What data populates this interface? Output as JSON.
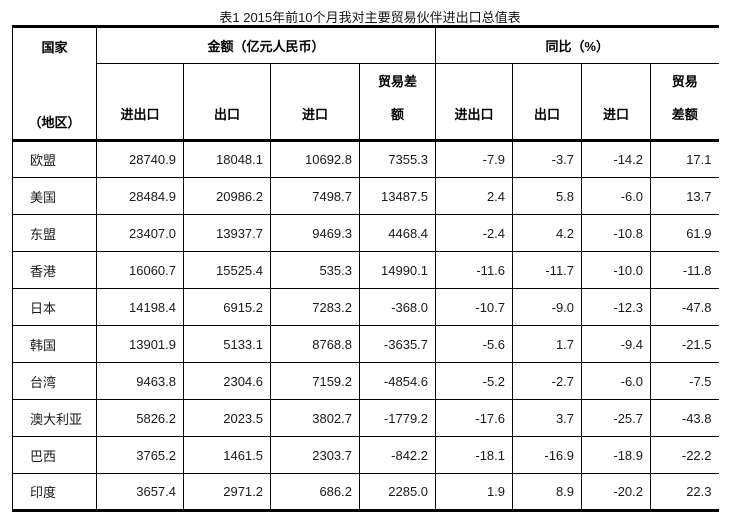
{
  "title": "表1 2015年前10个月我对主要贸易伙伴进出口总值表",
  "colors": {
    "border": "#000000",
    "text": "#1a1a1a",
    "background": "#ffffff"
  },
  "table": {
    "header": {
      "country_line1": "国家",
      "country_line2": "（地区）",
      "amount_group": "金额（亿元人民币）",
      "yoy_group": "同比（%）",
      "amount_cols": [
        "进出口",
        "出口",
        "进口",
        "贸易差\n额"
      ],
      "yoy_cols": [
        "进出口",
        "出口",
        "进口",
        "贸易\n差额"
      ]
    },
    "rows": [
      {
        "country": "欧盟",
        "values": [
          "28740.9",
          "18048.1",
          "10692.8",
          "7355.3",
          "-7.9",
          "-3.7",
          "-14.2",
          "17.1"
        ]
      },
      {
        "country": "美国",
        "values": [
          "28484.9",
          "20986.2",
          "7498.7",
          "13487.5",
          "2.4",
          "5.8",
          "-6.0",
          "13.7"
        ]
      },
      {
        "country": "东盟",
        "values": [
          "23407.0",
          "13937.7",
          "9469.3",
          "4468.4",
          "-2.4",
          "4.2",
          "-10.8",
          "61.9"
        ]
      },
      {
        "country": "香港",
        "values": [
          "16060.7",
          "15525.4",
          "535.3",
          "14990.1",
          "-11.6",
          "-11.7",
          "-10.0",
          "-11.8"
        ]
      },
      {
        "country": "日本",
        "values": [
          "14198.4",
          "6915.2",
          "7283.2",
          "-368.0",
          "-10.7",
          "-9.0",
          "-12.3",
          "-47.8"
        ]
      },
      {
        "country": "韩国",
        "values": [
          "13901.9",
          "5133.1",
          "8768.8",
          "-3635.7",
          "-5.6",
          "1.7",
          "-9.4",
          "-21.5"
        ]
      },
      {
        "country": "台湾",
        "values": [
          "9463.8",
          "2304.6",
          "7159.2",
          "-4854.6",
          "-5.2",
          "-2.7",
          "-6.0",
          "-7.5"
        ]
      },
      {
        "country": "澳大利亚",
        "values": [
          "5826.2",
          "2023.5",
          "3802.7",
          "-1779.2",
          "-17.6",
          "3.7",
          "-25.7",
          "-43.8"
        ]
      },
      {
        "country": "巴西",
        "values": [
          "3765.2",
          "1461.5",
          "2303.7",
          "-842.2",
          "-18.1",
          "-16.9",
          "-18.9",
          "-22.2"
        ]
      },
      {
        "country": "印度",
        "values": [
          "3657.4",
          "2971.2",
          "686.2",
          "2285.0",
          "1.9",
          "8.9",
          "-20.2",
          "22.3"
        ]
      }
    ]
  },
  "chart_data": {
    "type": "table",
    "title": "表1 2015年前10个月我对主要贸易伙伴进出口总值表",
    "row_header": "国家（地区）",
    "column_groups": [
      {
        "label": "金额（亿元人民币）",
        "columns": [
          "进出口",
          "出口",
          "进口",
          "贸易差额"
        ]
      },
      {
        "label": "同比（%）",
        "columns": [
          "进出口",
          "出口",
          "进口",
          "贸易差额"
        ]
      }
    ],
    "columns": [
      "国家（地区）",
      "金额-进出口",
      "金额-出口",
      "金额-进口",
      "金额-贸易差额",
      "同比-进出口",
      "同比-出口",
      "同比-进口",
      "同比-贸易差额"
    ],
    "rows": [
      [
        "欧盟",
        28740.9,
        18048.1,
        10692.8,
        7355.3,
        -7.9,
        -3.7,
        -14.2,
        17.1
      ],
      [
        "美国",
        28484.9,
        20986.2,
        7498.7,
        13487.5,
        2.4,
        5.8,
        -6.0,
        13.7
      ],
      [
        "东盟",
        23407.0,
        13937.7,
        9469.3,
        4468.4,
        -2.4,
        4.2,
        -10.8,
        61.9
      ],
      [
        "香港",
        16060.7,
        15525.4,
        535.3,
        14990.1,
        -11.6,
        -11.7,
        -10.0,
        -11.8
      ],
      [
        "日本",
        14198.4,
        6915.2,
        7283.2,
        -368.0,
        -10.7,
        -9.0,
        -12.3,
        -47.8
      ],
      [
        "韩国",
        13901.9,
        5133.1,
        8768.8,
        -3635.7,
        -5.6,
        1.7,
        -9.4,
        -21.5
      ],
      [
        "台湾",
        9463.8,
        2304.6,
        7159.2,
        -4854.6,
        -5.2,
        -2.7,
        -6.0,
        -7.5
      ],
      [
        "澳大利亚",
        5826.2,
        2023.5,
        3802.7,
        -1779.2,
        -17.6,
        3.7,
        -25.7,
        -43.8
      ],
      [
        "巴西",
        3765.2,
        1461.5,
        2303.7,
        -842.2,
        -18.1,
        -16.9,
        -18.9,
        -22.2
      ],
      [
        "印度",
        3657.4,
        2971.2,
        686.2,
        2285.0,
        1.9,
        8.9,
        -20.2,
        22.3
      ]
    ]
  }
}
